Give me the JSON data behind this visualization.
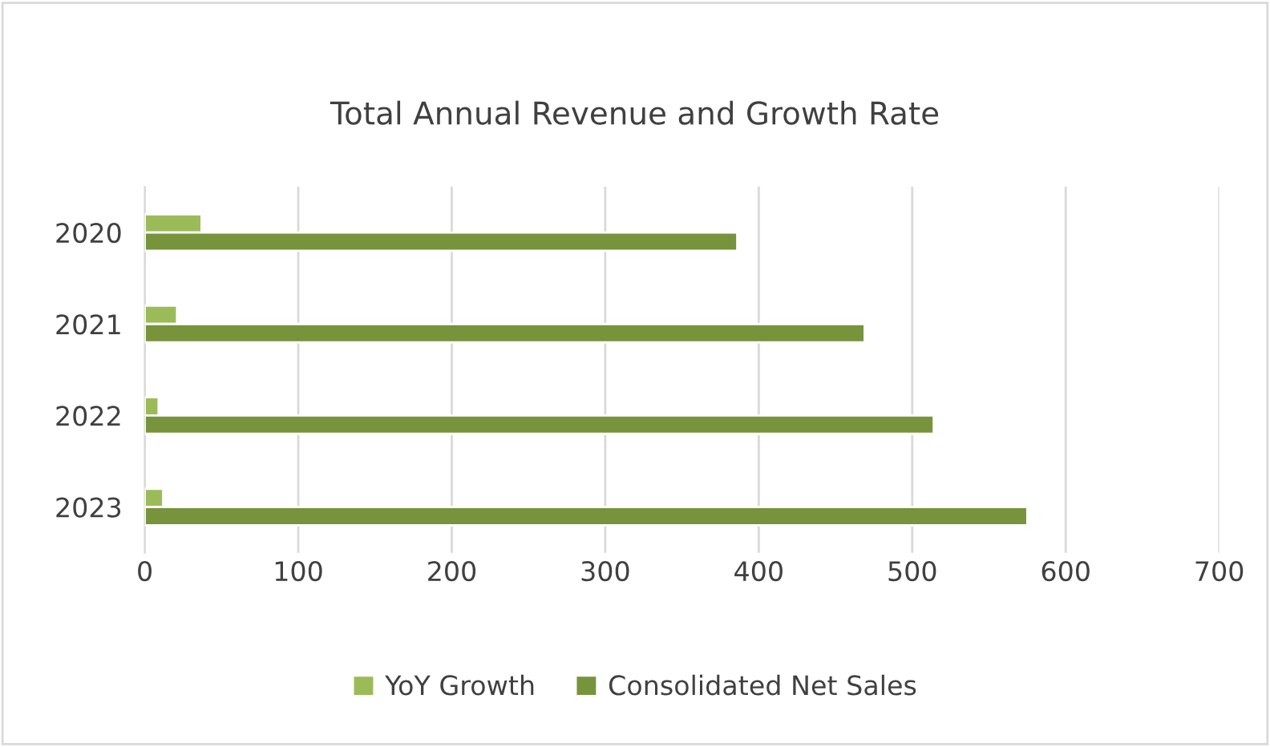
{
  "chart_data": {
    "type": "bar",
    "orientation": "horizontal",
    "title": "Total Annual Revenue and Growth Rate",
    "categories": [
      "2020",
      "2021",
      "2022",
      "2023"
    ],
    "series": [
      {
        "name": "YoY Growth",
        "color": "#9bbb59",
        "values": [
          37,
          21,
          9,
          12
        ]
      },
      {
        "name": "Consolidated Net Sales",
        "color": "#77933c",
        "values": [
          386,
          469,
          514,
          575
        ]
      }
    ],
    "xlim": [
      0,
      700
    ],
    "xticks": [
      0,
      100,
      200,
      300,
      400,
      500,
      600,
      700
    ],
    "grid": "x",
    "legend": "bottom"
  }
}
